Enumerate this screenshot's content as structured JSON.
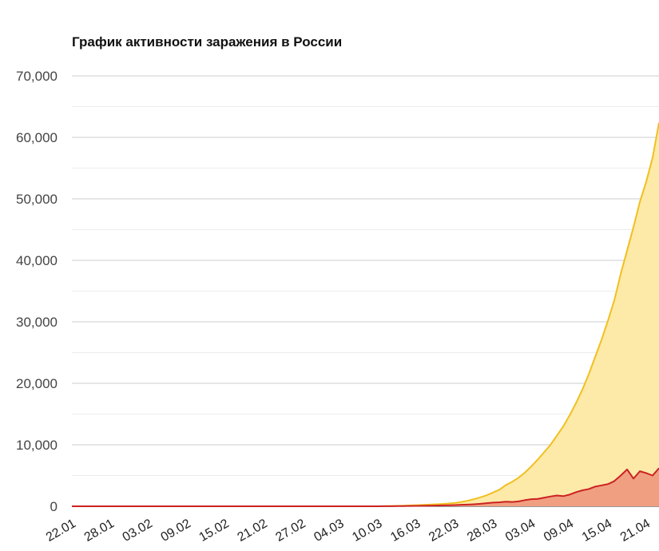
{
  "chart_data": {
    "type": "area",
    "title": "График активности заражения в России",
    "xlabel": "",
    "ylabel": "",
    "ylim": [
      0,
      70000
    ],
    "yticks": [
      0,
      10000,
      20000,
      30000,
      40000,
      50000,
      60000,
      70000
    ],
    "ytick_labels": [
      "0",
      "10,000",
      "20,000",
      "30,000",
      "40,000",
      "50,000",
      "60,000",
      "70,000"
    ],
    "grid": true,
    "x_tick_labels": [
      "22.01",
      "28.01",
      "03.02",
      "09.02",
      "15.02",
      "21.02",
      "27.02",
      "04.03",
      "10.03",
      "16.03",
      "22.03",
      "28.03",
      "03.04",
      "09.04",
      "15.04",
      "21.04"
    ],
    "x_start": "22.01",
    "x_end": "25.04",
    "series": [
      {
        "color": "#f0c020",
        "fill": "#fde9a8",
        "values": [
          0,
          0,
          0,
          0,
          0,
          0,
          0,
          0,
          0,
          0,
          0,
          0,
          0,
          0,
          0,
          0,
          0,
          0,
          0,
          0,
          0,
          0,
          0,
          0,
          0,
          0,
          0,
          0,
          0,
          0,
          0,
          0,
          0,
          0,
          0,
          0,
          0,
          0,
          0,
          0,
          0,
          0,
          0,
          0,
          0,
          0,
          0,
          0,
          0,
          20,
          40,
          70,
          100,
          140,
          180,
          220,
          270,
          320,
          380,
          450,
          540,
          700,
          900,
          1150,
          1450,
          1800,
          2250,
          2700,
          3450,
          4000,
          4650,
          5500,
          6500,
          7600,
          8800,
          10000,
          11500,
          13000,
          14800,
          16800,
          19000,
          21500,
          24300,
          27100,
          30200,
          33500,
          37800,
          41600,
          45400,
          49500,
          52800,
          56700,
          62400
        ]
      },
      {
        "color": "#cc2222",
        "fill": "#f0a080",
        "values": [
          0,
          0,
          0,
          0,
          0,
          0,
          0,
          0,
          0,
          0,
          0,
          0,
          0,
          0,
          0,
          0,
          0,
          0,
          0,
          0,
          0,
          0,
          0,
          0,
          0,
          0,
          0,
          0,
          0,
          0,
          0,
          0,
          0,
          0,
          0,
          0,
          0,
          0,
          0,
          0,
          0,
          0,
          0,
          0,
          0,
          0,
          0,
          0,
          0,
          10,
          20,
          30,
          40,
          50,
          60,
          80,
          100,
          120,
          140,
          170,
          200,
          240,
          280,
          330,
          400,
          500,
          600,
          650,
          750,
          700,
          800,
          1000,
          1150,
          1200,
          1400,
          1600,
          1750,
          1650,
          1900,
          2300,
          2600,
          2800,
          3200,
          3400,
          3600,
          4100,
          5000,
          6000,
          4500,
          5700,
          5400,
          5000,
          6200
        ]
      }
    ]
  }
}
